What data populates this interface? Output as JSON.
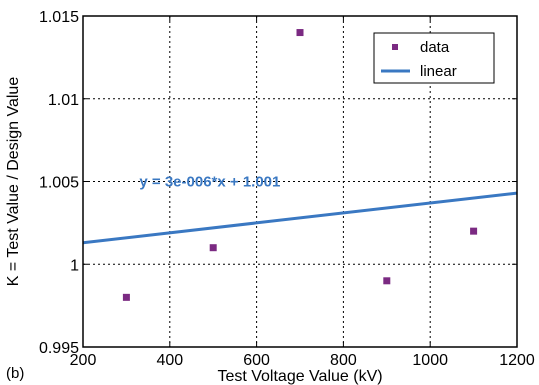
{
  "chart_data": {
    "type": "scatter",
    "panel_label": "(b)",
    "xlabel": "Test Voltage Value (kV)",
    "ylabel": "K = Test Value / Design Value",
    "xlim": [
      200,
      1200
    ],
    "ylim": [
      0.995,
      1.015
    ],
    "x_ticks": [
      200,
      400,
      600,
      800,
      1000,
      1200
    ],
    "x_tick_labels": [
      "200",
      "400",
      "600",
      "800",
      "1000",
      "1200"
    ],
    "y_ticks": [
      0.995,
      1.0,
      1.005,
      1.01,
      1.015
    ],
    "y_tick_labels": [
      "0.995",
      "1",
      "1.005",
      "1.01",
      "1.015"
    ],
    "grid": true,
    "grid_style": "dashed",
    "legend_position": "top-right",
    "series": [
      {
        "name": "data",
        "kind": "scatter",
        "marker": "square",
        "color": "#7b2a82",
        "x": [
          300,
          500,
          700,
          900,
          1100
        ],
        "y": [
          0.998,
          1.001,
          1.014,
          0.999,
          1.002
        ]
      },
      {
        "name": "linear",
        "kind": "line",
        "color": "#3a78c2",
        "x": [
          200,
          1200
        ],
        "y": [
          1.0013,
          1.0043
        ]
      }
    ],
    "annotation": {
      "text": "y = 3e-006*x + 1.001",
      "color": "#3a78c2",
      "x": 330,
      "y": 1.0047
    }
  }
}
